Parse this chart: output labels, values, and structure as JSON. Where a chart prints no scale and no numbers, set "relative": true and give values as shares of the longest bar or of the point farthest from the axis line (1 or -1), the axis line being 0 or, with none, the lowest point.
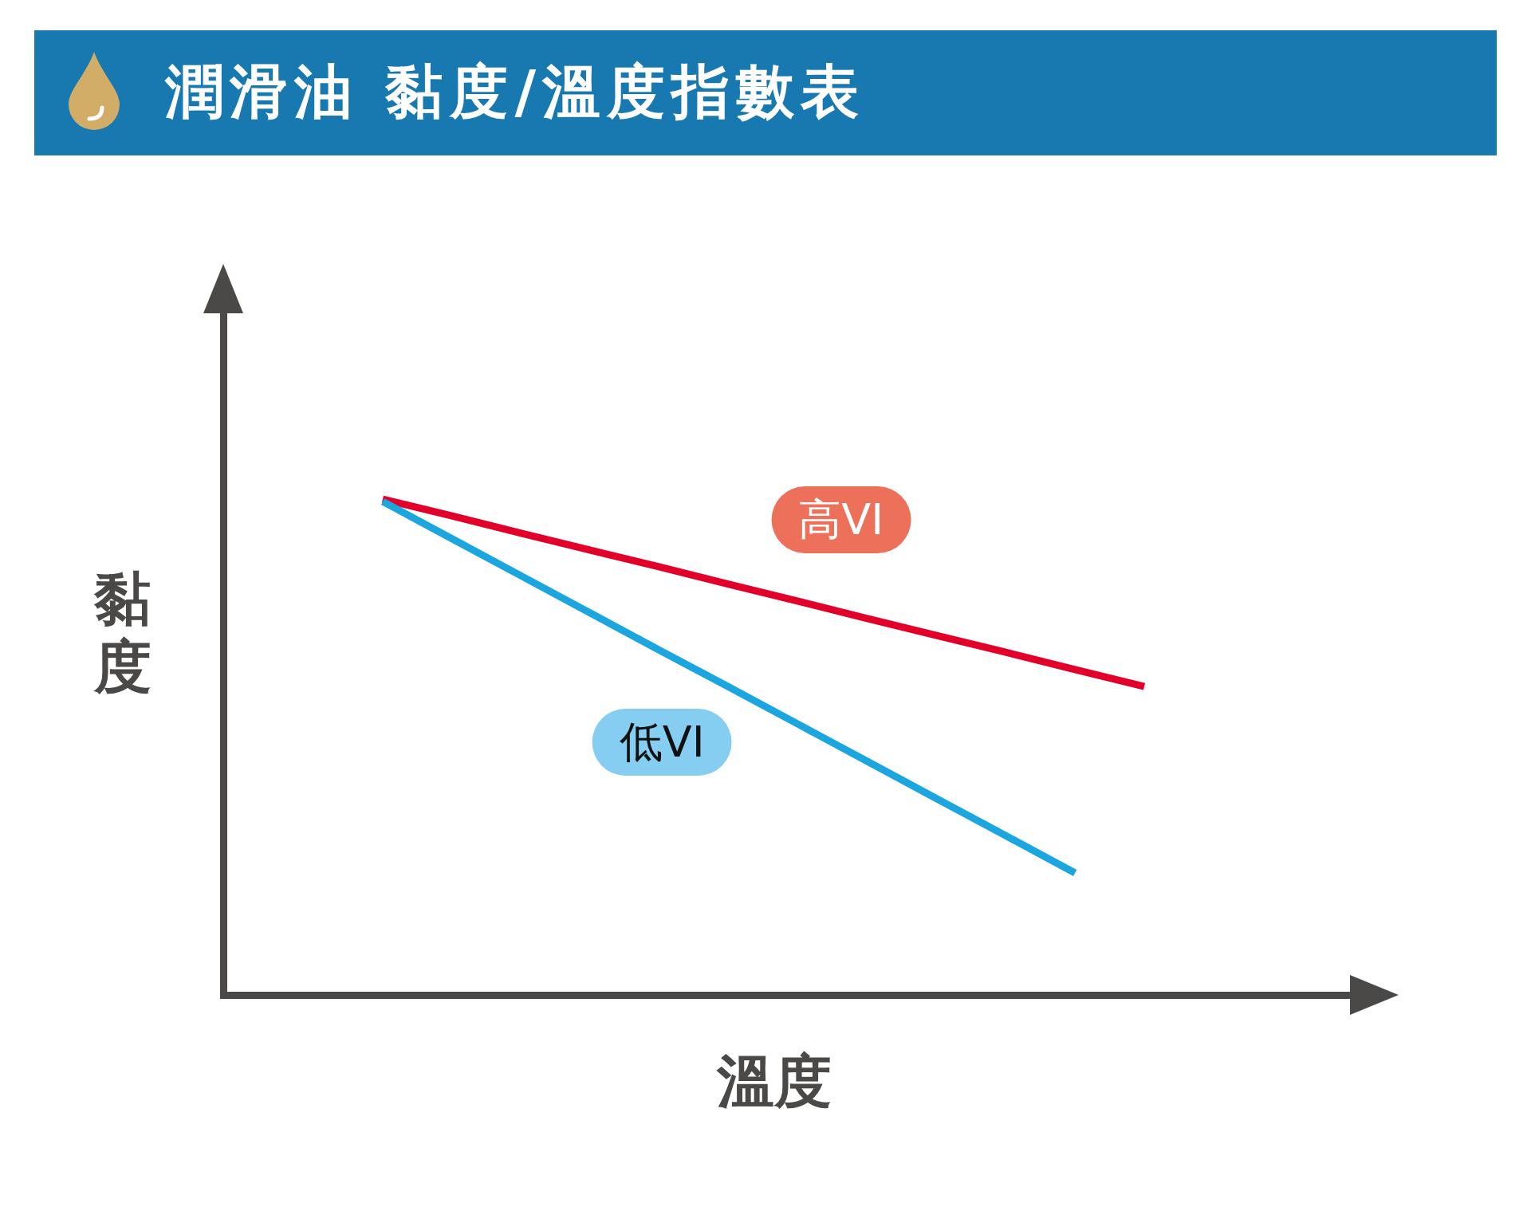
{
  "chart_data": {
    "type": "line",
    "title": "潤滑油 黏度/溫度指數表",
    "xlabel": "溫度",
    "ylabel": "黏度",
    "relative": true,
    "line_style": "solid",
    "categories": [
      null,
      null,
      null,
      null,
      null,
      null,
      null,
      null,
      null,
      null,
      null,
      null
    ],
    "series": [
      {
        "name": "高VI",
        "color": "#e2002a",
        "values": [
          1,
          0.966,
          0.931,
          0.897,
          0.863,
          0.828,
          0.794,
          0.759,
          0.725,
          0.691,
          0.656,
          0.622
        ]
      },
      {
        "name": "低VI",
        "color": "#1ca6df",
        "values": [
          0.995,
          0.92,
          0.845,
          0.77,
          0.695,
          0.621,
          0.546,
          0.471,
          0.396,
          0.321,
          0.246,
          null
        ]
      }
    ]
  }
}
